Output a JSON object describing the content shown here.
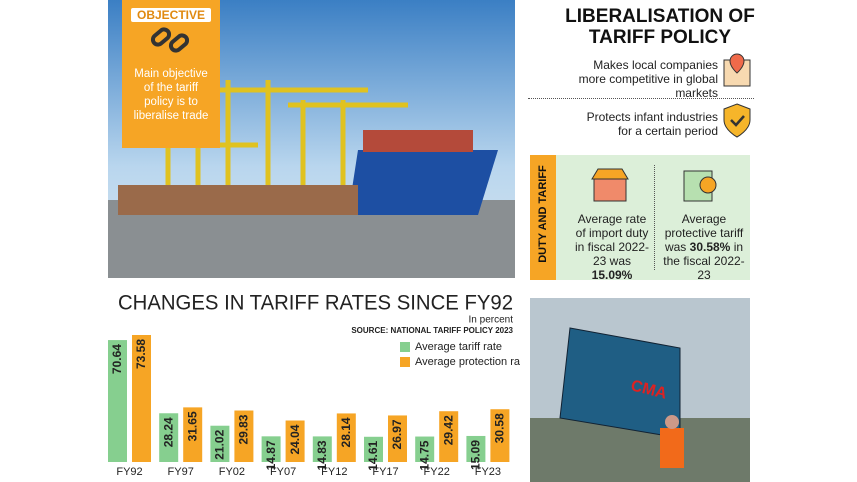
{
  "objective": {
    "label": "OBJECTIVE",
    "text": "Main objective of the tariff policy is to liberalise trade"
  },
  "panel": {
    "title": "LIBERALISATION OF TARIFF POLICY",
    "items": [
      "Makes local companies more competitive in global markets",
      "Protects infant industries for a certain period"
    ]
  },
  "duty": {
    "label": "DUTY AND TARIFF",
    "cards": [
      [
        "Average rate of import duty in fiscal 2022-23 was",
        "15.09%"
      ],
      [
        "Average protective tariff was",
        "30.58%",
        "in the fiscal 2022-23"
      ]
    ]
  },
  "chart_data": {
    "type": "bar",
    "title": "CHANGES IN TARIFF RATES SINCE FY92",
    "subtitle": "In percent",
    "source": "SOURCE: NATIONAL TARIFF POLICY 2023",
    "categories": [
      "FY92",
      "FY97",
      "FY02",
      "FY07",
      "FY12",
      "FY17",
      "FY22",
      "FY23"
    ],
    "series": [
      {
        "name": "Average tariff rate",
        "color": "#86cf8f",
        "values": [
          70.64,
          28.24,
          21.02,
          14.87,
          14.83,
          14.61,
          14.75,
          15.09
        ]
      },
      {
        "name": "Average protection rate",
        "color": "#f6a525",
        "values": [
          73.58,
          31.65,
          29.83,
          24.04,
          28.14,
          26.97,
          29.42,
          30.58
        ]
      }
    ]
  }
}
